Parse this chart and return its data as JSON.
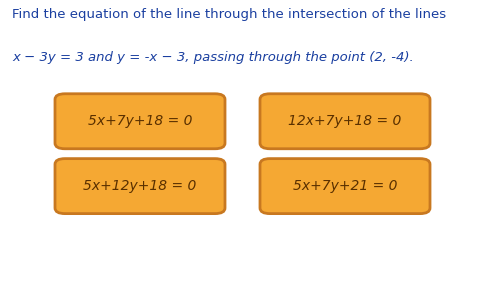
{
  "title_line1": "Find the equation of the line through the intersection of the lines",
  "title_line2": "x − 3y = 3 and y = -x − 3, passing through the point (2, -4).",
  "title_color": "#1a3fa0",
  "bg_color": "#ffffff",
  "box_fill_color": "#f5a833",
  "box_edge_color": "#c87820",
  "box_text_color": "#5a3000",
  "options": [
    [
      "5x+7y+18 = 0",
      "12x+7y+18 = 0"
    ],
    [
      "5x+12y+18 = 0",
      "5x+7y+21 = 0"
    ]
  ],
  "font_size_title": 9.5,
  "font_size_box": 10.0,
  "fig_width": 5.0,
  "fig_height": 2.82,
  "dpi": 100
}
